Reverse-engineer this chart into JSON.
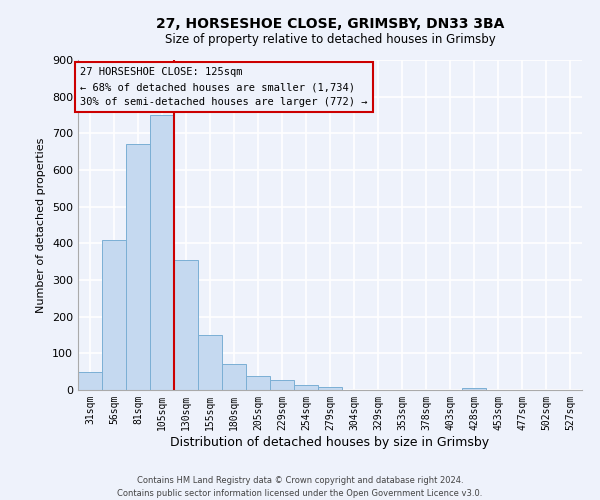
{
  "title": "27, HORSESHOE CLOSE, GRIMSBY, DN33 3BA",
  "subtitle": "Size of property relative to detached houses in Grimsby",
  "xlabel": "Distribution of detached houses by size in Grimsby",
  "ylabel": "Number of detached properties",
  "bin_labels": [
    "31sqm",
    "56sqm",
    "81sqm",
    "105sqm",
    "130sqm",
    "155sqm",
    "180sqm",
    "205sqm",
    "229sqm",
    "254sqm",
    "279sqm",
    "304sqm",
    "329sqm",
    "353sqm",
    "378sqm",
    "403sqm",
    "428sqm",
    "453sqm",
    "477sqm",
    "502sqm",
    "527sqm"
  ],
  "bar_heights": [
    50,
    410,
    670,
    750,
    355,
    150,
    70,
    37,
    28,
    15,
    8,
    0,
    0,
    0,
    0,
    0,
    5,
    0,
    0,
    0,
    0
  ],
  "bar_color": "#c5d9f0",
  "bar_edge_color": "#7bafd4",
  "vline_color": "#cc0000",
  "annotation_title": "27 HORSESHOE CLOSE: 125sqm",
  "annotation_line1": "← 68% of detached houses are smaller (1,734)",
  "annotation_line2": "30% of semi-detached houses are larger (772) →",
  "annotation_box_edge": "#cc0000",
  "ylim": [
    0,
    900
  ],
  "yticks": [
    0,
    100,
    200,
    300,
    400,
    500,
    600,
    700,
    800,
    900
  ],
  "footer1": "Contains HM Land Registry data © Crown copyright and database right 2024.",
  "footer2": "Contains public sector information licensed under the Open Government Licence v3.0.",
  "bg_color": "#eef2fb",
  "grid_color": "#ffffff"
}
